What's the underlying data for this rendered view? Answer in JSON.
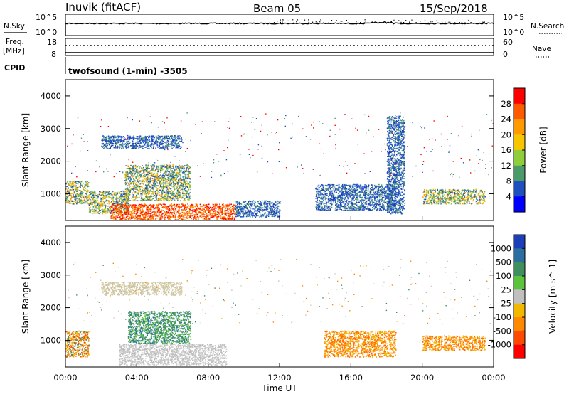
{
  "header": {
    "station": "Inuvik (fitACF)",
    "beam": "Beam 05",
    "date": "15/Sep/2018"
  },
  "top_panel": {
    "nsky_label": "N.Sky",
    "nsearch_label": "N.Search",
    "left_ticks": [
      "10^5",
      "10^0"
    ],
    "right_ticks": [
      "10^5",
      "10^0"
    ],
    "freq_label_1": "Freq.",
    "freq_label_2": "[MHz]",
    "freq_ticks": [
      "18",
      "8"
    ],
    "nave_label": "Nave",
    "nave_ticks": [
      "60",
      "0"
    ],
    "cpid_label": "CPID",
    "cpid_value": "twofsound (1-min) -3505"
  },
  "chart_data": [
    {
      "type": "heatmap",
      "name": "power",
      "ylabel": "Slant Range [km]",
      "ylim": [
        180,
        4500
      ],
      "yticks": [
        1000,
        2000,
        3000,
        4000
      ],
      "xlim": [
        0,
        24
      ],
      "colorbar_label": "Power [dB]",
      "colorbar_ticks": [
        "28",
        "24",
        "20",
        "16",
        "12",
        "8",
        "4"
      ],
      "colorbar_colors": [
        "#ff0000",
        "#ff5a00",
        "#ff9a00",
        "#f7c600",
        "#8fce3a",
        "#4a9a6a",
        "#2050c0",
        "#0000ff"
      ],
      "regions": [
        {
          "t0": 0.0,
          "t1": 1.3,
          "r0": 700,
          "r1": 1400,
          "level": "mid"
        },
        {
          "t0": 1.3,
          "t1": 3.5,
          "r0": 400,
          "r1": 1100,
          "level": "mid"
        },
        {
          "t0": 3.3,
          "t1": 7.0,
          "r0": 800,
          "r1": 1900,
          "level": "mid"
        },
        {
          "t0": 2.5,
          "t1": 9.5,
          "r0": 200,
          "r1": 700,
          "level": "high"
        },
        {
          "t0": 9.5,
          "t1": 12.0,
          "r0": 300,
          "r1": 800,
          "level": "low"
        },
        {
          "t0": 14.0,
          "t1": 18.5,
          "r0": 500,
          "r1": 1300,
          "level": "low"
        },
        {
          "t0": 20.0,
          "t1": 23.5,
          "r0": 700,
          "r1": 1150,
          "level": "mid"
        },
        {
          "t0": 2.0,
          "t1": 6.5,
          "r0": 2400,
          "r1": 2800,
          "level": "low"
        },
        {
          "t0": 18.0,
          "t1": 19.0,
          "r0": 400,
          "r1": 3400,
          "level": "low"
        }
      ]
    },
    {
      "type": "heatmap",
      "name": "velocity",
      "ylabel": "Slant Range [km]",
      "ylim": [
        180,
        4500
      ],
      "yticks": [
        1000,
        2000,
        3000,
        4000
      ],
      "xlim": [
        0,
        24
      ],
      "xticks": [
        "00:00",
        "04:00",
        "08:00",
        "12:00",
        "16:00",
        "20:00",
        "00:00"
      ],
      "xlabel": "Time UT",
      "colorbar_label": "Velocity [m s^-1]",
      "colorbar_ticks": [
        "1000",
        "500",
        "100",
        "25",
        "-25",
        "-100",
        "-500",
        "-1000"
      ],
      "colorbar_colors": [
        "#1c3fb8",
        "#2a6fa0",
        "#3f8f5f",
        "#5cc43c",
        "#c0c0c0",
        "#f2b800",
        "#ff8a00",
        "#ff4800",
        "#ff0000"
      ],
      "regions": [
        {
          "t0": 0.0,
          "t1": 1.3,
          "r0": 500,
          "r1": 1300,
          "level": "away-low"
        },
        {
          "t0": 3.5,
          "t1": 7.0,
          "r0": 900,
          "r1": 1900,
          "level": "toward-mid"
        },
        {
          "t0": 3.0,
          "t1": 9.0,
          "r0": 250,
          "r1": 900,
          "level": "ground"
        },
        {
          "t0": 14.5,
          "t1": 18.5,
          "r0": 500,
          "r1": 1300,
          "level": "away-mid"
        },
        {
          "t0": 20.0,
          "t1": 23.5,
          "r0": 700,
          "r1": 1150,
          "level": "away-mid"
        },
        {
          "t0": 2.0,
          "t1": 6.5,
          "r0": 2400,
          "r1": 2800,
          "level": "ground-faint"
        }
      ]
    }
  ]
}
